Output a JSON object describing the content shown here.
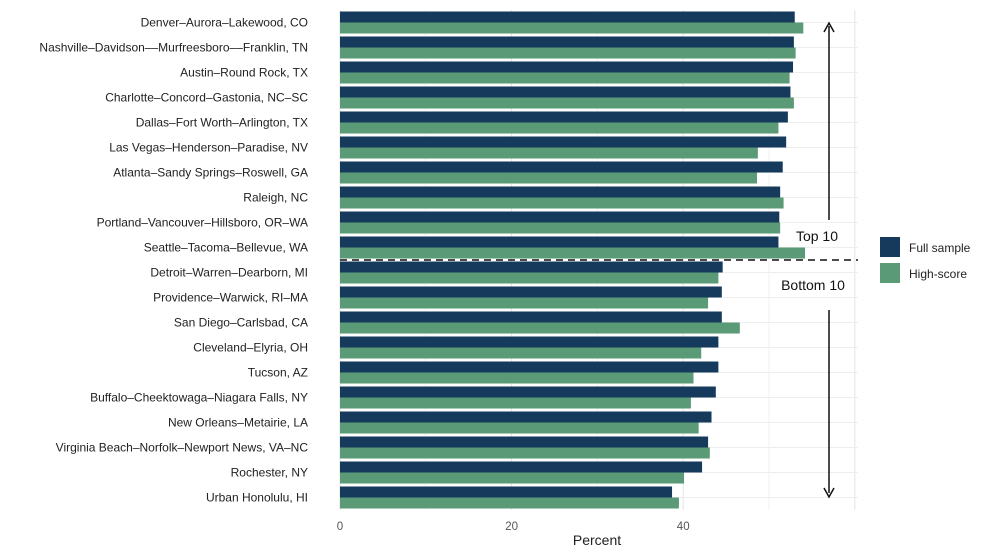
{
  "chart_data": {
    "type": "bar",
    "orientation": "horizontal",
    "categories": [
      "Denver–Aurora–Lakewood, CO",
      "Nashville–Davidson––Murfreesboro––Franklin, TN",
      "Austin–Round Rock, TX",
      "Charlotte–Concord–Gastonia, NC–SC",
      "Dallas–Fort Worth–Arlington, TX",
      "Las Vegas–Henderson–Paradise, NV",
      "Atlanta–Sandy Springs–Roswell, GA",
      "Raleigh, NC",
      "Portland–Vancouver–Hillsboro, OR–WA",
      "Seattle–Tacoma–Bellevue, WA",
      "Detroit–Warren–Dearborn, MI",
      "Providence–Warwick, RI–MA",
      "San Diego–Carlsbad, CA",
      "Cleveland–Elyria, OH",
      "Tucson, AZ",
      "Buffalo–Cheektowaga–Niagara Falls, NY",
      "New Orleans–Metairie, LA",
      "Virginia Beach–Norfolk–Newport News, VA–NC",
      "Rochester, NY",
      "Urban Honolulu, HI"
    ],
    "series": [
      {
        "name": "Full sample",
        "color": "#163a5c",
        "values": [
          53.0,
          52.9,
          52.8,
          52.5,
          52.2,
          52.0,
          51.6,
          51.3,
          51.2,
          51.1,
          44.6,
          44.5,
          44.5,
          44.1,
          44.1,
          43.8,
          43.3,
          42.9,
          42.2,
          38.7
        ]
      },
      {
        "name": "High-score",
        "color": "#5a9a76",
        "values": [
          54.0,
          53.1,
          52.4,
          52.9,
          51.1,
          48.7,
          48.6,
          51.7,
          51.3,
          54.2,
          44.1,
          42.9,
          46.6,
          42.1,
          41.2,
          40.9,
          41.8,
          43.1,
          40.1,
          39.5
        ]
      }
    ],
    "xlabel": "Percent",
    "xlim": [
      0,
      60
    ],
    "xticks": [
      "0",
      "20",
      "40"
    ],
    "grid": true,
    "legend": "right",
    "divider_after_index": 9,
    "annotations": {
      "top": "Top 10",
      "bottom": "Bottom 10"
    }
  }
}
